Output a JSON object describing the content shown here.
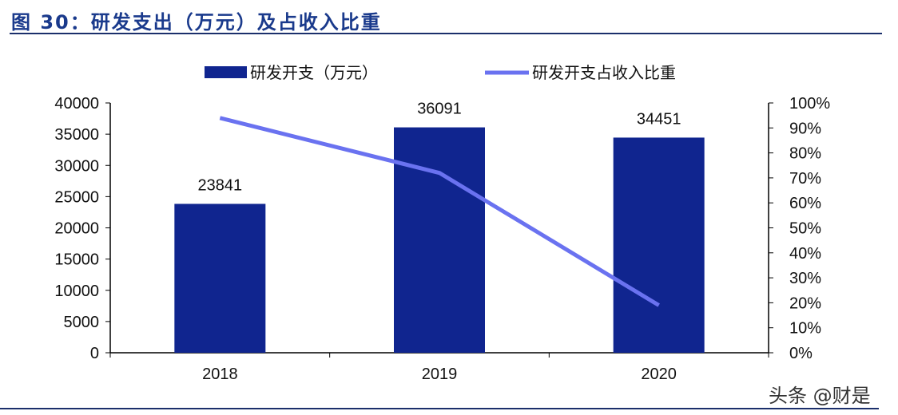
{
  "title": "图 30：研发支出（万元）及占收入比重",
  "watermark": "头条 @财是",
  "chart_data": {
    "type": "bar+line",
    "categories": [
      "2018",
      "2019",
      "2020"
    ],
    "series": [
      {
        "name": "研发开支（万元）",
        "type": "bar",
        "axis": "left",
        "color": "#10258f",
        "values": [
          23841,
          36091,
          34451
        ],
        "data_labels": [
          "23841",
          "36091",
          "34451"
        ]
      },
      {
        "name": "研发开支占收入比重",
        "type": "line",
        "axis": "right",
        "color": "#6a72f0",
        "values": [
          0.94,
          0.72,
          0.19
        ]
      }
    ],
    "ylim_left": [
      0,
      40000
    ],
    "yticks_left": [
      "0",
      "5000",
      "10000",
      "15000",
      "20000",
      "25000",
      "30000",
      "35000",
      "40000"
    ],
    "ylim_right": [
      0,
      1
    ],
    "yticks_right": [
      "0%",
      "10%",
      "20%",
      "30%",
      "40%",
      "50%",
      "60%",
      "70%",
      "80%",
      "90%",
      "100%"
    ],
    "legend": "top",
    "grid": false
  }
}
